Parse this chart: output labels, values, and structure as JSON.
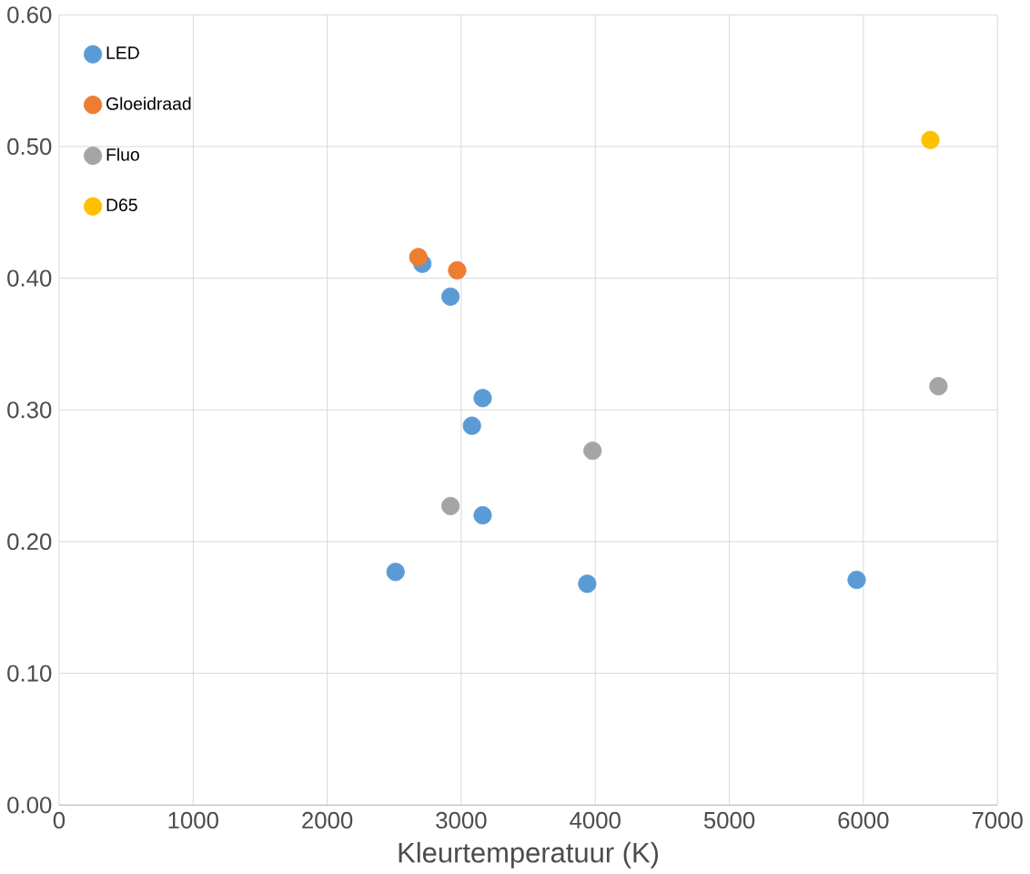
{
  "chart_data": {
    "type": "scatter",
    "xlabel": "Kleurtemperatuur (K)",
    "xlim": [
      0,
      7000
    ],
    "xticks": [
      0,
      1000,
      2000,
      3000,
      4000,
      5000,
      6000,
      7000
    ],
    "ylim": [
      0,
      0.6
    ],
    "yticks": [
      {
        "value": 0,
        "label": "0.00"
      },
      {
        "value": 0.1,
        "label": "0.10"
      },
      {
        "value": 0.2,
        "label": "0.20"
      },
      {
        "value": 0.3,
        "label": "0.30"
      },
      {
        "value": 0.4,
        "label": "0.40"
      },
      {
        "value": 0.5,
        "label": "0.50"
      },
      {
        "value": 0.6,
        "label": "0.60"
      }
    ],
    "grid": true,
    "legend": "top left",
    "marker": "circle",
    "series": [
      {
        "name": "LED",
        "color": "#5b9bd5",
        "x": [
          2710,
          2920,
          3160,
          3080,
          3160,
          2510,
          3940,
          5950
        ],
        "values": [
          0.411,
          0.386,
          0.309,
          0.288,
          0.22,
          0.177,
          0.168,
          0.171
        ]
      },
      {
        "name": "Gloeidraad",
        "color": "#ed7d31",
        "x": [
          2680,
          2970
        ],
        "values": [
          0.416,
          0.406
        ]
      },
      {
        "name": "Fluo",
        "color": "#a5a5a5",
        "x": [
          2920,
          3980,
          6560
        ],
        "values": [
          0.227,
          0.269,
          0.318
        ]
      },
      {
        "name": "D65",
        "color": "#ffc000",
        "x": [
          6500
        ],
        "values": [
          0.505
        ]
      }
    ]
  }
}
